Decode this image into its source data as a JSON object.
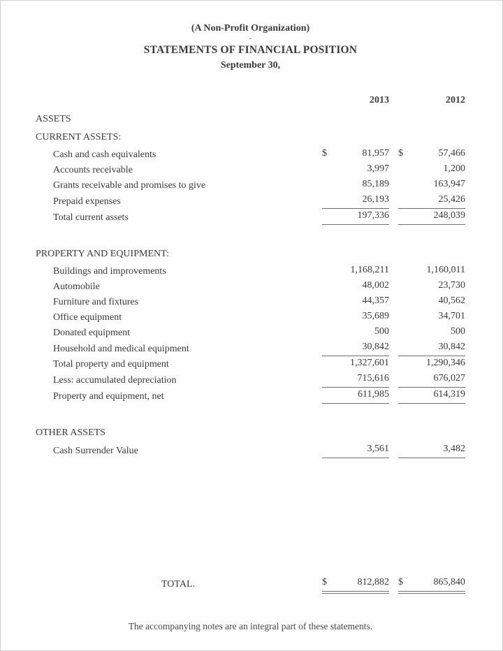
{
  "header": {
    "org_line": "(A Non-Profit Organization)",
    "dash_mark": "-",
    "title": "STATEMENTS OF FINANCIAL POSITION",
    "date_line": "September 30,"
  },
  "columns": [
    "2013",
    "2012"
  ],
  "statement": {
    "assets_heading": "ASSETS",
    "sections": [
      {
        "heading": "CURRENT ASSETS:",
        "rows": [
          {
            "label": "Cash and cash equivalents",
            "currency": "$",
            "values": [
              "81,957",
              "57,466"
            ],
            "rule": "none"
          },
          {
            "label": "Accounts receivable",
            "currency": null,
            "values": [
              "3,997",
              "1,200"
            ],
            "rule": "none"
          },
          {
            "label": "Grants receivable and promises to give",
            "currency": null,
            "values": [
              "85,189",
              "163,947"
            ],
            "rule": "none"
          },
          {
            "label": "Prepaid expenses",
            "currency": null,
            "values": [
              "26,193",
              "25,426"
            ],
            "rule": "single"
          },
          {
            "label": "Total current assets",
            "currency": null,
            "values": [
              "197,336",
              "248,039"
            ],
            "rule": "single"
          }
        ]
      },
      {
        "heading": "PROPERTY AND EQUIPMENT:",
        "rows": [
          {
            "label": "Buildings and improvements",
            "currency": null,
            "values": [
              "1,168,211",
              "1,160,011"
            ],
            "rule": "none"
          },
          {
            "label": "Automobile",
            "currency": null,
            "values": [
              "48,002",
              "23,730"
            ],
            "rule": "none"
          },
          {
            "label": "Furniture and fixtures",
            "currency": null,
            "values": [
              "44,357",
              "40,562"
            ],
            "rule": "none"
          },
          {
            "label": "Office equipment",
            "currency": null,
            "values": [
              "35,689",
              "34,701"
            ],
            "rule": "none"
          },
          {
            "label": "Donated equipment",
            "currency": null,
            "values": [
              "500",
              "500"
            ],
            "rule": "none"
          },
          {
            "label": "Household and medical equipment",
            "currency": null,
            "values": [
              "30,842",
              "30,842"
            ],
            "rule": "single"
          },
          {
            "label": "Total property and equipment",
            "currency": null,
            "values": [
              "1,327,601",
              "1,290,346"
            ],
            "rule": "none"
          },
          {
            "label": "Less: accumulated depreciation",
            "currency": null,
            "values": [
              "715,616",
              "676,027"
            ],
            "rule": "single"
          },
          {
            "label": "Property and equipment, net",
            "currency": null,
            "values": [
              "611,985",
              "614,319"
            ],
            "rule": "single"
          }
        ]
      },
      {
        "heading": "OTHER ASSETS",
        "rows": [
          {
            "label": "Cash Surrender Value",
            "currency": null,
            "values": [
              "3,561",
              "3,482"
            ],
            "rule": "single"
          }
        ]
      }
    ],
    "total": {
      "label": "TOTAL.",
      "currency": "$",
      "values": [
        "812,882",
        "865,840"
      ],
      "rule": "double"
    }
  },
  "footer": {
    "note": "The accompanying notes are an integral part of these statements."
  },
  "colors": {
    "text": "#3a3a3a",
    "rule": "#6e6e6e",
    "background": "#fefefe",
    "page_border": "#cfcfcf"
  }
}
